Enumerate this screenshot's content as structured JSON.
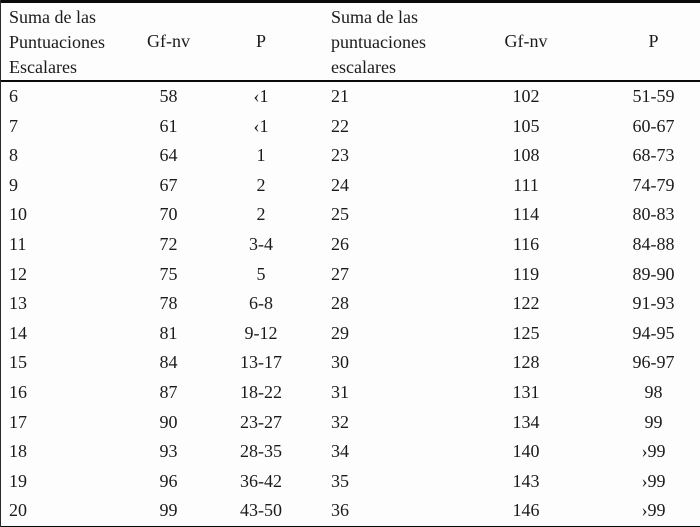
{
  "table": {
    "colors": {
      "text": "#1b1b1b",
      "background": "#fdfdfd",
      "rule": "#000000"
    },
    "left": {
      "header": {
        "sum_lines": [
          "Suma de las",
          "Puntuaciones",
          "Escalares"
        ],
        "gf_label": "Gf-nv",
        "p_label": "P"
      },
      "rows": [
        {
          "sum": "6",
          "gf": "58",
          "p": "‹1"
        },
        {
          "sum": "7",
          "gf": "61",
          "p": "‹1"
        },
        {
          "sum": "8",
          "gf": "64",
          "p": "1"
        },
        {
          "sum": "9",
          "gf": "67",
          "p": "2"
        },
        {
          "sum": "10",
          "gf": "70",
          "p": "2"
        },
        {
          "sum": "11",
          "gf": "72",
          "p": "3-4"
        },
        {
          "sum": "12",
          "gf": "75",
          "p": "5"
        },
        {
          "sum": "13",
          "gf": "78",
          "p": "6-8"
        },
        {
          "sum": "14",
          "gf": "81",
          "p": "9-12"
        },
        {
          "sum": "15",
          "gf": "84",
          "p": "13-17"
        },
        {
          "sum": "16",
          "gf": "87",
          "p": "18-22"
        },
        {
          "sum": "17",
          "gf": "90",
          "p": "23-27"
        },
        {
          "sum": "18",
          "gf": "93",
          "p": "28-35"
        },
        {
          "sum": "19",
          "gf": "96",
          "p": "36-42"
        },
        {
          "sum": "20",
          "gf": "99",
          "p": "43-50"
        }
      ]
    },
    "right": {
      "header": {
        "sum_lines": [
          "Suma de las",
          "puntuaciones",
          "escalares"
        ],
        "gf_label": "Gf-nv",
        "p_label": "P"
      },
      "rows": [
        {
          "sum": "21",
          "gf": "102",
          "p": "51-59"
        },
        {
          "sum": "22",
          "gf": "105",
          "p": "60-67"
        },
        {
          "sum": "23",
          "gf": "108",
          "p": "68-73"
        },
        {
          "sum": "24",
          "gf": "111",
          "p": "74-79"
        },
        {
          "sum": "25",
          "gf": "114",
          "p": "80-83"
        },
        {
          "sum": "26",
          "gf": "116",
          "p": "84-88"
        },
        {
          "sum": "27",
          "gf": "119",
          "p": "89-90"
        },
        {
          "sum": "28",
          "gf": "122",
          "p": "91-93"
        },
        {
          "sum": "29",
          "gf": "125",
          "p": "94-95"
        },
        {
          "sum": "30",
          "gf": "128",
          "p": "96-97"
        },
        {
          "sum": "31",
          "gf": "131",
          "p": "98"
        },
        {
          "sum": "32",
          "gf": "134",
          "p": "99"
        },
        {
          "sum": "34",
          "gf": "140",
          "p": "›99"
        },
        {
          "sum": "35",
          "gf": "143",
          "p": "›99"
        },
        {
          "sum": "36",
          "gf": "146",
          "p": "›99"
        }
      ]
    }
  }
}
